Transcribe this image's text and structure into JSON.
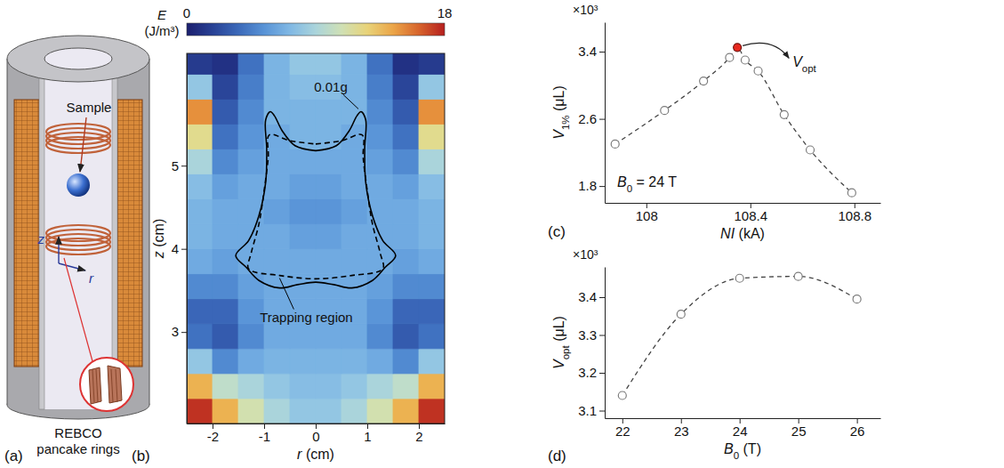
{
  "chart_data": [
    {
      "type": "diagram",
      "panel_label": "(a)",
      "labels": {
        "sample": "Sample",
        "rings": "REBCO pancake rings",
        "z_axis": "z",
        "r_axis": "r"
      }
    },
    {
      "type": "heatmap",
      "panel_label": "(b)",
      "xlabel": "r (cm)",
      "ylabel": "z (cm)",
      "xlim": [
        -2.5,
        2.5
      ],
      "xticks": [
        -2,
        -1,
        0,
        1,
        2
      ],
      "ylim": [
        1.9,
        6.35
      ],
      "yticks": [
        3,
        4,
        5
      ],
      "cell_r": [
        -2.25,
        -1.75,
        -1.25,
        -0.75,
        -0.25,
        0.25,
        0.75,
        1.25,
        1.75,
        2.25
      ],
      "cell_z": [
        2.05,
        2.35,
        2.65,
        2.95,
        3.25,
        3.55,
        3.85,
        4.15,
        4.45,
        4.75,
        5.05,
        5.35,
        5.65,
        5.95,
        6.25
      ],
      "cells": [
        [
          17.5,
          14,
          11,
          9,
          8,
          8,
          9,
          11,
          14,
          17.5
        ],
        [
          14,
          10,
          9,
          8,
          7.5,
          7.5,
          8,
          9,
          10,
          14
        ],
        [
          8,
          5,
          6.5,
          7,
          7,
          7,
          7,
          6.5,
          5,
          8
        ],
        [
          4,
          3,
          5,
          6.5,
          6.5,
          6.5,
          6.5,
          5,
          3,
          4
        ],
        [
          3.5,
          3.5,
          5.5,
          6.5,
          6.5,
          6.5,
          6.5,
          5.5,
          3.5,
          3.5
        ],
        [
          5,
          5,
          6,
          6.5,
          6.5,
          6.5,
          6.5,
          6,
          5,
          5
        ],
        [
          6.5,
          6,
          6.5,
          6.5,
          6.5,
          6.5,
          6.5,
          6.5,
          6,
          6.5
        ],
        [
          7,
          6.5,
          6.5,
          6.5,
          6,
          6,
          6.5,
          6.5,
          6.5,
          7
        ],
        [
          7,
          6.5,
          6.5,
          6,
          5.5,
          5.5,
          6,
          6.5,
          6.5,
          7
        ],
        [
          7.5,
          6,
          6.5,
          6.5,
          6,
          6,
          6.5,
          6.5,
          6,
          7.5
        ],
        [
          9,
          5,
          6,
          6.5,
          6.5,
          6.5,
          6.5,
          6,
          5,
          9
        ],
        [
          12,
          4,
          5.5,
          6.5,
          7,
          7,
          6.5,
          5.5,
          4,
          12
        ],
        [
          15,
          3,
          5,
          7,
          7,
          7,
          7,
          5,
          3,
          15
        ],
        [
          8,
          2,
          4.5,
          7,
          7.5,
          7.5,
          7,
          4.5,
          2,
          8
        ],
        [
          1.5,
          1,
          4,
          7,
          8,
          8,
          7,
          4,
          1,
          1.5
        ]
      ],
      "colorbar": {
        "label": [
          "E",
          "(J/m³)"
        ],
        "range": [
          0,
          18
        ],
        "ticks": [
          0,
          18
        ]
      },
      "curves": [
        {
          "name": "0.01g",
          "color": "#000000",
          "line_style": "solid",
          "r": [
            0,
            0.4,
            0.65,
            0.8,
            0.88,
            0.97,
            0.95,
            0.97,
            1.1,
            1.3,
            1.55,
            1.35,
            1.1,
            0.7,
            0.35,
            0,
            -0.35,
            -0.7,
            -1.1,
            -1.35,
            -1.55,
            -1.3,
            -1.1,
            -0.97,
            -0.95,
            -0.97,
            -0.88,
            -0.8,
            -0.65,
            -0.4,
            0
          ],
          "z": [
            5.18,
            5.24,
            5.42,
            5.6,
            5.65,
            5.55,
            5.2,
            4.8,
            4.4,
            4.1,
            3.92,
            3.78,
            3.62,
            3.53,
            3.57,
            3.6,
            3.57,
            3.53,
            3.62,
            3.78,
            3.92,
            4.1,
            4.4,
            4.8,
            5.2,
            5.55,
            5.65,
            5.6,
            5.42,
            5.24,
            5.18
          ]
        },
        {
          "name": "Trapping region",
          "color": "#000000",
          "line_style": "dashed",
          "r": [
            0,
            0.5,
            0.9,
            0.92,
            1.0,
            1.1,
            1.25,
            1.3,
            0.7,
            0,
            -0.7,
            -1.3,
            -1.25,
            -1.1,
            -1.0,
            -0.92,
            -0.9,
            -0.5,
            0
          ],
          "z": [
            5.26,
            5.3,
            5.37,
            5.1,
            4.7,
            4.3,
            3.95,
            3.76,
            3.68,
            3.64,
            3.68,
            3.76,
            3.95,
            4.3,
            4.7,
            5.1,
            5.37,
            5.3,
            5.26
          ]
        }
      ]
    },
    {
      "type": "line",
      "panel_label": "(c)",
      "xlabel": "NI (kA)",
      "ylabel": "V1% (μL)",
      "y_multiplier": "×10³",
      "xlim": [
        107.84,
        108.9
      ],
      "xticks": [
        108,
        108.4,
        108.8
      ],
      "ylim": [
        1600,
        3750
      ],
      "yticks": [
        {
          "value": 1800,
          "label": "1.8"
        },
        {
          "value": 2600,
          "label": "2.6"
        },
        {
          "value": 3400,
          "label": "3.4"
        }
      ],
      "x": [
        107.88,
        108.07,
        108.22,
        108.32,
        108.35,
        108.38,
        108.43,
        108.53,
        108.63,
        108.79
      ],
      "values": [
        2300,
        2700,
        3050,
        3330,
        3450,
        3300,
        3170,
        2650,
        2230,
        1720
      ],
      "color": "#444444",
      "marker": "circle",
      "line_style": "dashed",
      "colors": [
        "#ffffff",
        "#ffffff",
        "#ffffff",
        "#ffffff",
        "#e8281e",
        "#ffffff",
        "#ffffff",
        "#ffffff",
        "#ffffff",
        "#ffffff"
      ],
      "annotations": [
        {
          "text": "Vopt",
          "x": 108.35,
          "y": 3450
        },
        {
          "text": "B0 = 24 T"
        }
      ]
    },
    {
      "type": "line",
      "panel_label": "(d)",
      "xlabel": "B0 (T)",
      "ylabel": "Vopt (μL)",
      "y_multiplier": "×10³",
      "xlim": [
        21.7,
        26.4
      ],
      "xticks": [
        22,
        23,
        24,
        25,
        26
      ],
      "ylim": [
        3080,
        3480
      ],
      "yticks": [
        {
          "value": 3100,
          "label": "3.1"
        },
        {
          "value": 3200,
          "label": "3.2"
        },
        {
          "value": 3300,
          "label": "3.3"
        },
        {
          "value": 3400,
          "label": "3.4"
        }
      ],
      "x": [
        22,
        23,
        24,
        25,
        26
      ],
      "values": [
        3140,
        3355,
        3450,
        3455,
        3395
      ],
      "color": "#444444",
      "marker": "circle",
      "line_style": "dashed",
      "colors": [
        "#ffffff",
        "#ffffff",
        "#ffffff",
        "#ffffff",
        "#ffffff"
      ],
      "annotations": []
    }
  ]
}
